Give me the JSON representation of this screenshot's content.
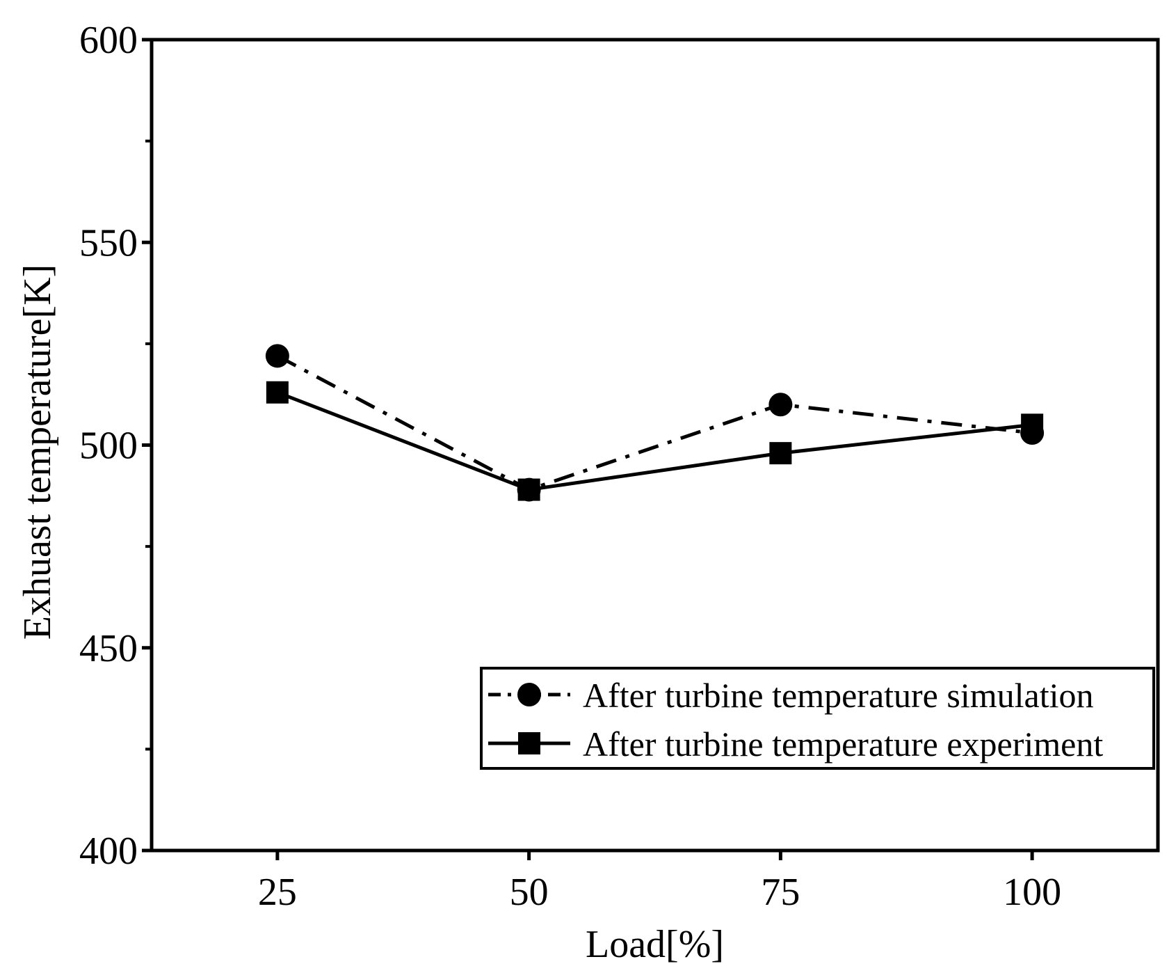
{
  "chart_data": {
    "type": "line",
    "title": "",
    "xlabel": "Load[%]",
    "ylabel": "Exhuast temperature[K]",
    "xlim": [
      12.5,
      112.5
    ],
    "ylim": [
      400,
      600
    ],
    "x": [
      25,
      50,
      75,
      100
    ],
    "xticks": [
      "25",
      "50",
      "75",
      "100"
    ],
    "yticks": [
      "400",
      "450",
      "500",
      "550",
      "600"
    ],
    "grid": false,
    "legend_position": "bottom-right",
    "series": [
      {
        "name": "After turbine temperature simulation",
        "marker": "circle",
        "line_style": "dash-dot",
        "color": "#000000",
        "values": [
          522,
          489,
          510,
          503
        ]
      },
      {
        "name": "After turbine temperature experiment",
        "marker": "square",
        "line_style": "solid",
        "color": "#000000",
        "values": [
          513,
          489,
          498,
          505
        ]
      }
    ]
  }
}
